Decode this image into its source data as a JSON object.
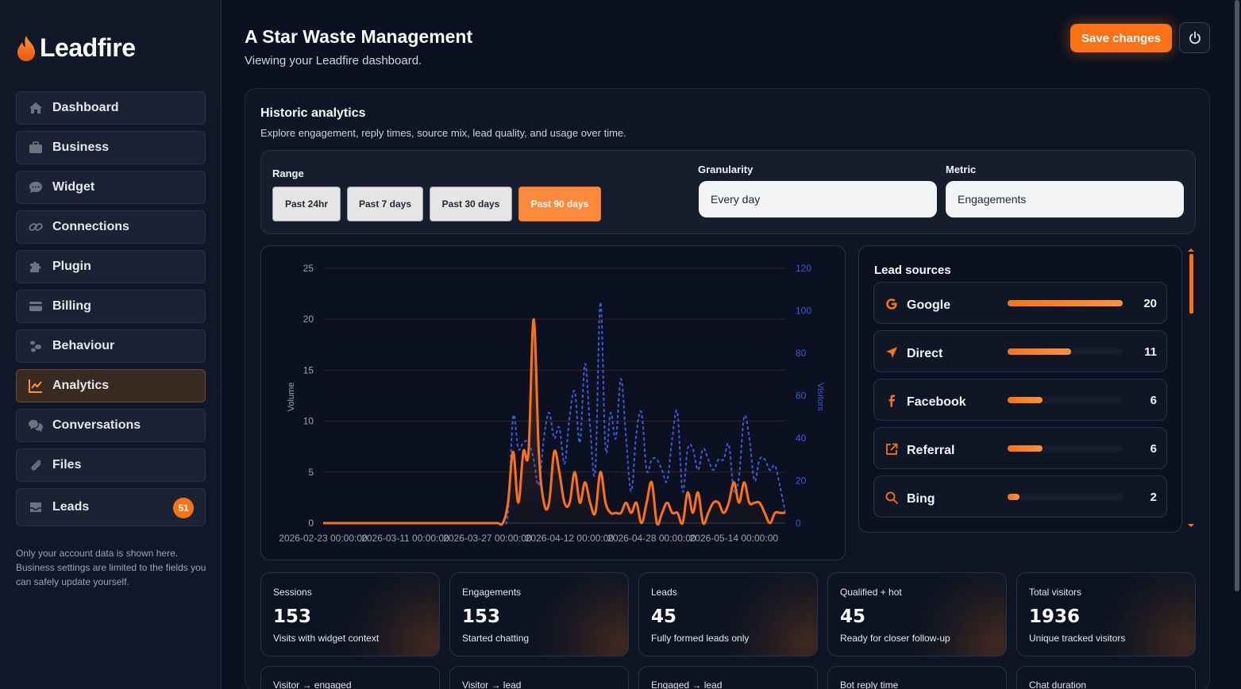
{
  "brand": {
    "name": "Leadfire"
  },
  "sidebar": {
    "items": [
      {
        "label": "Dashboard",
        "icon": "home-icon"
      },
      {
        "label": "Business",
        "icon": "briefcase-icon"
      },
      {
        "label": "Widget",
        "icon": "chat-bubble-icon"
      },
      {
        "label": "Connections",
        "icon": "link-icon"
      },
      {
        "label": "Plugin",
        "icon": "puzzle-icon"
      },
      {
        "label": "Billing",
        "icon": "credit-card-icon"
      },
      {
        "label": "Behaviour",
        "icon": "footprints-icon"
      },
      {
        "label": "Analytics",
        "icon": "chart-line-icon",
        "active": true
      },
      {
        "label": "Conversations",
        "icon": "conversations-icon"
      },
      {
        "label": "Files",
        "icon": "paperclip-icon"
      },
      {
        "label": "Leads",
        "icon": "inbox-icon",
        "badge": "51"
      }
    ],
    "note": "Only your account data is shown here. Business settings are limited to the fields you can safely update yourself."
  },
  "header": {
    "title": "A Star Waste Management",
    "subtitle": "Viewing your Leadfire dashboard.",
    "save_label": "Save changes"
  },
  "analytics": {
    "title": "Historic analytics",
    "subtitle": "Explore engagement, reply times, source mix, lead quality, and usage over time.",
    "range_label": "Range",
    "ranges": [
      "Past 24hr",
      "Past 7 days",
      "Past 30 days",
      "Past 90 days"
    ],
    "active_range": "Past 90 days",
    "granularity_label": "Granularity",
    "granularity_value": "Every day",
    "metric_label": "Metric",
    "metric_value": "Engagements"
  },
  "colors": {
    "accent": "#f97316",
    "visitors": "#3b5bdb"
  },
  "chart_data": {
    "type": "line",
    "ylabel": "Volume",
    "y2label": "Visitors",
    "ylim": [
      0,
      25
    ],
    "y2lim": [
      0,
      120
    ],
    "yticks": [
      0,
      5,
      10,
      15,
      20,
      25
    ],
    "y2ticks": [
      0,
      20,
      40,
      60,
      80,
      100,
      120
    ],
    "xtick_labels": [
      "2026-02-23 00:00:00",
      "2026-03-11 00:00:00",
      "2026-03-27 00:00:00",
      "2026-04-12 00:00:00",
      "2026-04-28 00:00:00",
      "2026-05-14 00:00:00"
    ],
    "x_start": "2026-02-23",
    "series": [
      {
        "name": "Engagements",
        "axis": "left",
        "values": [
          0,
          0,
          0,
          0,
          0,
          0,
          0,
          0,
          0,
          0,
          0,
          0,
          0,
          0,
          0,
          0,
          0,
          0,
          0,
          0,
          0,
          0,
          0,
          0,
          0,
          0,
          0,
          0,
          0,
          0,
          0,
          0,
          0,
          0,
          0,
          0,
          2,
          7,
          2,
          7,
          7,
          20,
          7,
          2,
          2,
          7,
          5,
          2,
          2,
          5,
          2,
          4,
          2,
          1,
          5,
          2,
          1,
          1,
          1,
          2,
          1,
          2,
          0,
          2,
          4,
          0,
          1,
          2,
          1,
          1,
          0,
          3,
          1,
          3,
          0,
          1,
          2,
          2,
          1,
          2,
          4,
          2,
          4,
          2,
          2,
          2,
          1,
          0,
          1,
          1,
          1
        ]
      },
      {
        "name": "Visitors",
        "axis": "right",
        "values": [
          0,
          0,
          0,
          0,
          0,
          0,
          0,
          0,
          0,
          0,
          0,
          0,
          0,
          0,
          0,
          0,
          0,
          0,
          0,
          0,
          0,
          0,
          0,
          0,
          0,
          0,
          0,
          0,
          0,
          0,
          0,
          0,
          0,
          0,
          0,
          0,
          5,
          50,
          35,
          38,
          38,
          30,
          18,
          40,
          52,
          40,
          45,
          28,
          50,
          62,
          38,
          75,
          45,
          25,
          104,
          35,
          52,
          40,
          68,
          40,
          15,
          42,
          52,
          25,
          30,
          30,
          25,
          20,
          40,
          52,
          15,
          35,
          35,
          25,
          35,
          30,
          25,
          30,
          30,
          37,
          15,
          22,
          50,
          40,
          20,
          30,
          30,
          25,
          27,
          17,
          5
        ]
      }
    ]
  },
  "lead_sources": {
    "title": "Lead sources",
    "max": 20,
    "items": [
      {
        "name": "Google",
        "count": 20,
        "icon": "google-icon"
      },
      {
        "name": "Direct",
        "count": 11,
        "icon": "navigation-arrow-icon"
      },
      {
        "name": "Facebook",
        "count": 6,
        "icon": "facebook-icon"
      },
      {
        "name": "Referral",
        "count": 6,
        "icon": "external-link-icon"
      },
      {
        "name": "Bing",
        "count": 2,
        "icon": "search-icon"
      }
    ]
  },
  "stats": [
    {
      "label": "Sessions",
      "value": "153",
      "desc": "Visits with widget context"
    },
    {
      "label": "Engagements",
      "value": "153",
      "desc": "Started chatting"
    },
    {
      "label": "Leads",
      "value": "45",
      "desc": "Fully formed leads only"
    },
    {
      "label": "Qualified + hot",
      "value": "45",
      "desc": "Ready for closer follow-up"
    },
    {
      "label": "Total visitors",
      "value": "1936",
      "desc": "Unique tracked visitors"
    }
  ],
  "stats_row2": [
    {
      "label": "Visitor → engaged"
    },
    {
      "label": "Visitor → lead"
    },
    {
      "label": "Engaged → lead"
    },
    {
      "label": "Bot reply time"
    },
    {
      "label": "Chat duration"
    }
  ]
}
